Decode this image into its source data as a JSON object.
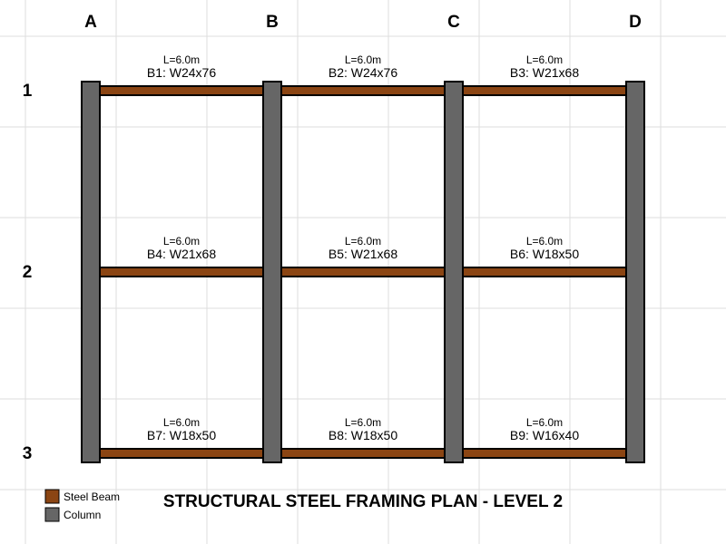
{
  "title": "STRUCTURAL STEEL FRAMING PLAN - LEVEL 2",
  "grid": {
    "columns": [
      "A",
      "B",
      "C",
      "D"
    ],
    "rows": [
      "1",
      "2",
      "3"
    ]
  },
  "beams": [
    {
      "id": "B1",
      "label": "B1: W24x76",
      "length": "L=6.0m",
      "row": 0,
      "from": 0
    },
    {
      "id": "B2",
      "label": "B2: W24x76",
      "length": "L=6.0m",
      "row": 0,
      "from": 1
    },
    {
      "id": "B3",
      "label": "B3: W21x68",
      "length": "L=6.0m",
      "row": 0,
      "from": 2
    },
    {
      "id": "B4",
      "label": "B4: W21x68",
      "length": "L=6.0m",
      "row": 1,
      "from": 0
    },
    {
      "id": "B5",
      "label": "B5: W21x68",
      "length": "L=6.0m",
      "row": 1,
      "from": 1
    },
    {
      "id": "B6",
      "label": "B6: W18x50",
      "length": "L=6.0m",
      "row": 1,
      "from": 2
    },
    {
      "id": "B7",
      "label": "B7: W18x50",
      "length": "L=6.0m",
      "row": 2,
      "from": 0
    },
    {
      "id": "B8",
      "label": "B8: W18x50",
      "length": "L=6.0m",
      "row": 2,
      "from": 1
    },
    {
      "id": "B9",
      "label": "B9: W16x40",
      "length": "L=6.0m",
      "row": 2,
      "from": 2
    }
  ],
  "legend": [
    {
      "label": "Steel Beam",
      "color": "#8b4513",
      "name": "legend-steel-beam"
    },
    {
      "label": "Column",
      "color": "#666666",
      "name": "legend-column"
    }
  ],
  "colors": {
    "beam": "#8b4513",
    "column": "#666666",
    "outline": "#000000",
    "gridline": "#dddddd"
  }
}
